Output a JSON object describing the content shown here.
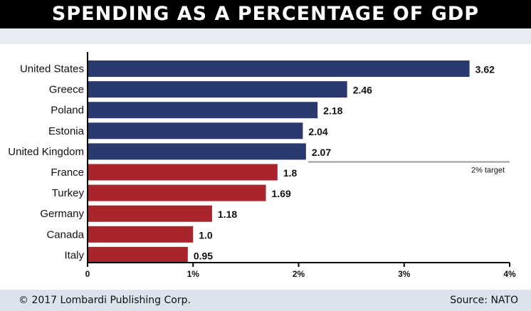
{
  "chart_data": {
    "type": "bar",
    "orientation": "horizontal",
    "title": "SPENDING AS A PERCENTAGE OF GDP",
    "categories": [
      "United States",
      "Greece",
      "Poland",
      "Estonia",
      "United Kingdom",
      "France",
      "Turkey",
      "Germany",
      "Canada",
      "Italy"
    ],
    "values": [
      3.62,
      2.46,
      2.18,
      2.04,
      2.07,
      1.8,
      1.69,
      1.18,
      1.0,
      0.95
    ],
    "value_labels": [
      "3.62",
      "2.46",
      "2.18",
      "2.04",
      "2.07",
      "1.8",
      "1.69",
      "1.18",
      "1.0",
      "0.95"
    ],
    "xlim": [
      0,
      4
    ],
    "xticks": [
      0,
      1,
      2,
      3,
      4
    ],
    "xtick_labels": [
      "0",
      "1%",
      "2%",
      "3%",
      "4%"
    ],
    "reference_line": {
      "value": 2,
      "label": "2% target"
    },
    "colors": {
      "above_target": "#2b3a6e",
      "below_target": "#a8262b"
    },
    "grid": false
  },
  "footer": {
    "copyright": "© 2017 Lombardi Publishing Corp.",
    "source": "Source: NATO"
  }
}
